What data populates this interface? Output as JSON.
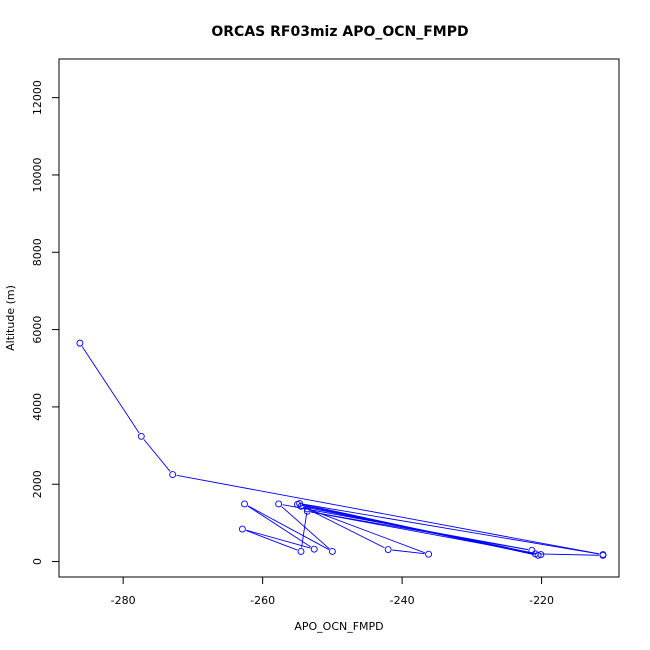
{
  "chart_data": {
    "type": "line",
    "title": "ORCAS RF03miz APO_OCN_FMPD",
    "xlabel": "APO_OCN_FMPD",
    "ylabel": "Altitude (m)",
    "xlim": [
      -289.2,
      -208.9
    ],
    "ylim": [
      -400,
      13000
    ],
    "xticks": [
      -280,
      -260,
      -240,
      -220
    ],
    "yticks": [
      0,
      2000,
      4000,
      6000,
      8000,
      10000,
      12000
    ],
    "series": [
      {
        "color": "#0000ff",
        "marker": "open-circle",
        "points": [
          [
            -286.2,
            5650
          ],
          [
            -277.4,
            3240
          ],
          [
            -272.9,
            2250
          ],
          [
            -211.2,
            180
          ],
          [
            -254.7,
            1500
          ],
          [
            -220.5,
            160
          ],
          [
            -255.0,
            1480
          ],
          [
            -220.1,
            180
          ],
          [
            -253.6,
            1300
          ],
          [
            -221.4,
            290
          ],
          [
            -257.7,
            1490
          ],
          [
            -250.0,
            260
          ],
          [
            -262.6,
            1490
          ],
          [
            -252.6,
            320
          ],
          [
            -262.9,
            840
          ],
          [
            -254.5,
            260
          ],
          [
            -253.6,
            1360
          ],
          [
            -242.0,
            310
          ],
          [
            -236.2,
            190
          ],
          [
            -254.5,
            1430
          ],
          [
            -220.9,
            200
          ],
          [
            -211.2,
            160
          ]
        ]
      }
    ]
  }
}
